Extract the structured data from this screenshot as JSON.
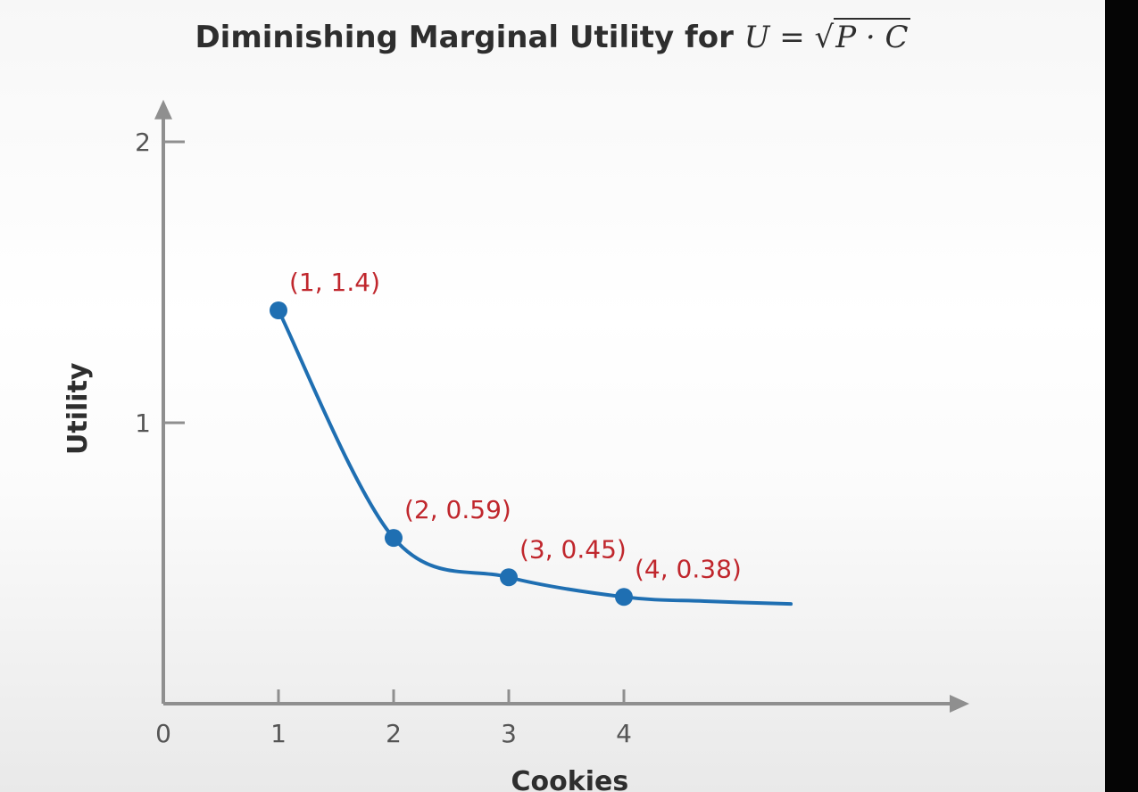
{
  "chart_data": {
    "type": "line",
    "title": "Diminishing Marginal Utility for",
    "title_formula": {
      "lhs": "U",
      "eq": "=",
      "root_symbol": "√",
      "radicand": "P · C"
    },
    "xlabel": "Cookies",
    "ylabel": "Utility",
    "xlim": [
      0,
      7
    ],
    "ylim": [
      0,
      2.15
    ],
    "x_ticks": [
      0,
      1,
      2,
      3,
      4
    ],
    "x_tick_labels": [
      "0",
      "1",
      "2",
      "3",
      "4"
    ],
    "y_ticks": [
      1,
      2
    ],
    "y_tick_labels": [
      "1",
      "2"
    ],
    "series": [
      {
        "points": [
          [
            1,
            1.4
          ],
          [
            2,
            0.59
          ],
          [
            3,
            0.45
          ],
          [
            4,
            0.38
          ]
        ],
        "curve_extends_to_x": 5.45,
        "point_labels": [
          "(1, 1.4)",
          "(2, 0.59)",
          "(3, 0.45)",
          "(4, 0.38)"
        ],
        "color": "#1f6fb2"
      }
    ],
    "label_color": "#c0272d",
    "axis_color": "#8f8f8f",
    "grid": false
  }
}
